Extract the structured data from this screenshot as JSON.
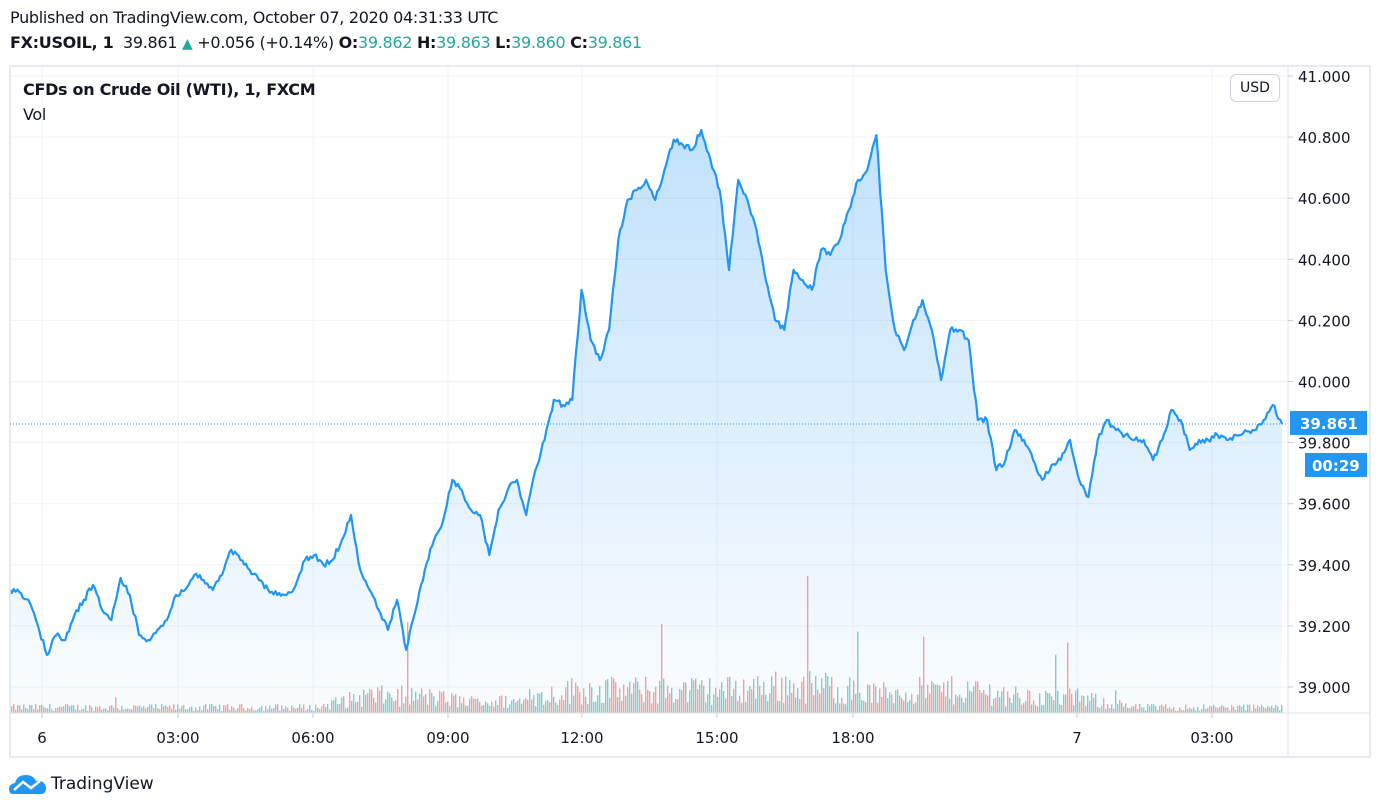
{
  "header": {
    "published": "Published on TradingView.com, October 07, 2020 04:31:33 UTC",
    "symbol": "FX:USOIL, 1",
    "last": "39.861",
    "change": "+0.056 (+0.14%)",
    "o_label": "O:",
    "o": "39.862",
    "h_label": "H:",
    "h": "39.863",
    "l_label": "L:",
    "l": "39.860",
    "c_label": "C:",
    "c": "39.861"
  },
  "legend": {
    "title": "CFDs on Crude Oil (WTI), 1, FXCM",
    "volume": "Vol"
  },
  "currency_button": "USD",
  "last_price_label": "39.861",
  "countdown_label": "00:29",
  "logo": "TradingView",
  "colors": {
    "line": "#2196f3",
    "up": "#26a69a",
    "down": "#ef5350",
    "grid": "#f0f3fa"
  },
  "chart_data": {
    "type": "area",
    "ylim": [
      38.9,
      41.0
    ],
    "y_ticks": [
      "39.000",
      "39.200",
      "39.400",
      "39.600",
      "39.800",
      "40.000",
      "40.200",
      "40.400",
      "40.600",
      "40.800",
      "41.000"
    ],
    "x_ticks": [
      "6",
      "03:00",
      "06:00",
      "09:00",
      "12:00",
      "15:00",
      "18:00",
      "7",
      "03:00"
    ],
    "grid": true,
    "series": [
      {
        "values": [
          39.318,
          39.311,
          39.285,
          39.203,
          39.105,
          39.17,
          39.154,
          39.236,
          39.285,
          39.334,
          39.252,
          39.219,
          39.357,
          39.301,
          39.17,
          39.154,
          39.187,
          39.219,
          39.301,
          39.318,
          39.367,
          39.35,
          39.318,
          39.367,
          39.449,
          39.416,
          39.383,
          39.35,
          39.318,
          39.301,
          39.301,
          39.334,
          39.416,
          39.432,
          39.4,
          39.416,
          39.481,
          39.563,
          39.383,
          39.318,
          39.252,
          39.187,
          39.285,
          39.121,
          39.252,
          39.383,
          39.481,
          39.547,
          39.678,
          39.645,
          39.58,
          39.563,
          39.432,
          39.58,
          39.645,
          39.678,
          39.563,
          39.71,
          39.809,
          39.94,
          39.923,
          39.94,
          40.3,
          40.136,
          40.07,
          40.169,
          40.463,
          40.594,
          40.627,
          40.66,
          40.594,
          40.692,
          40.791,
          40.774,
          40.758,
          40.823,
          40.725,
          40.627,
          40.365,
          40.66,
          40.594,
          40.496,
          40.332,
          40.201,
          40.169,
          40.365,
          40.332,
          40.3,
          40.431,
          40.414,
          40.463,
          40.561,
          40.66,
          40.692,
          40.807,
          40.365,
          40.169,
          40.103,
          40.201,
          40.267,
          40.169,
          40.005,
          40.169,
          40.169,
          40.136,
          39.874,
          39.874,
          39.71,
          39.743,
          39.841,
          39.809,
          39.743,
          39.678,
          39.727,
          39.743,
          39.809,
          39.678,
          39.622,
          39.809,
          39.874,
          39.841,
          39.825,
          39.809,
          39.809,
          39.743,
          39.809,
          39.907,
          39.874,
          39.776,
          39.809,
          39.809,
          39.825,
          39.809,
          39.825,
          39.841,
          39.841,
          39.874,
          39.923,
          39.861
        ]
      }
    ],
    "volume_envelope": [
      3,
      3,
      3,
      3,
      3,
      3,
      3,
      9,
      9,
      6,
      6,
      12,
      12,
      12,
      12,
      14,
      14,
      10,
      12,
      12,
      8,
      8,
      3,
      3,
      3,
      3
    ],
    "last_value": 39.861
  }
}
